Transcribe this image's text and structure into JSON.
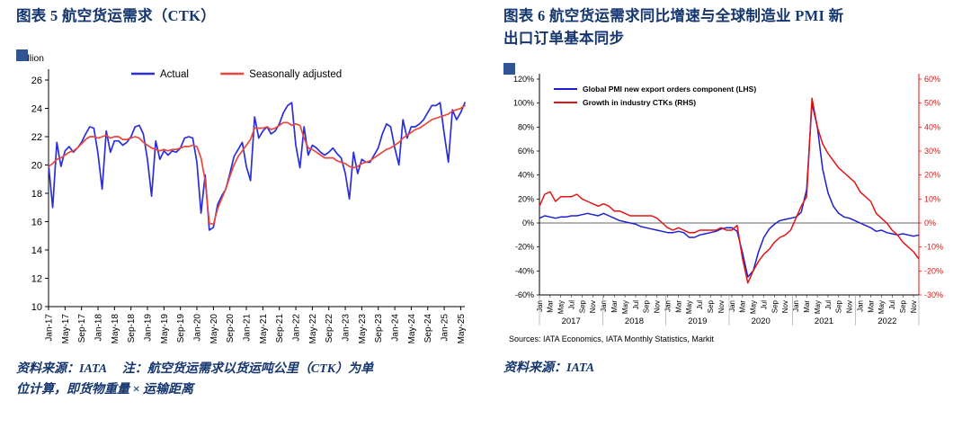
{
  "accent_color": "#15366e",
  "corner_marker_color": "#2f5597",
  "figure5": {
    "title": "图表 5   航空货运需求（CTK）",
    "note_line1": "资料来源：IATA　 注：航空货运需求以货运吨公里（CTK）为单",
    "note_line2": "位计算，即货物重量 × 运输距离"
  },
  "figure6": {
    "title_line1": "图表 6   航空货运需求同比增速与全球制造业 PMI 新",
    "title_line2": "出口订单基本同步",
    "source_note": "资料来源：IATA"
  },
  "chart_data": [
    {
      "type": "line",
      "title": "航空货运需求（CTK）",
      "ylabel": "Billion",
      "ylim": [
        10,
        26
      ],
      "y_ticks": [
        10,
        12,
        14,
        16,
        18,
        20,
        22,
        24,
        26
      ],
      "n": 102,
      "tick_every": 4,
      "tick_labels": [
        "Jan-17",
        "May-17",
        "Sep-17",
        "Jan-18",
        "May-18",
        "Sep-18",
        "Jan-19",
        "May-19",
        "Sep-19",
        "Jan-20",
        "May-20",
        "Sep-20",
        "Jan-21",
        "May-21",
        "Sep-21",
        "Jan-22",
        "May-22",
        "Sep-22",
        "Jan-23",
        "May-23",
        "Sep-23",
        "Jan-24",
        "May-24",
        "Sep-24",
        "Jan-25",
        "May-25"
      ],
      "series": [
        {
          "name": "Actual",
          "color": "#2a2fdb",
          "values": [
            20.0,
            17.0,
            21.6,
            19.9,
            21.0,
            21.3,
            20.9,
            21.2,
            21.6,
            22.2,
            22.7,
            22.6,
            20.8,
            18.3,
            22.4,
            20.9,
            21.7,
            21.7,
            21.4,
            21.6,
            22.0,
            22.7,
            22.8,
            22.2,
            20.4,
            17.8,
            21.7,
            20.4,
            21.0,
            20.7,
            21.0,
            20.9,
            21.2,
            21.9,
            22.0,
            21.9,
            20.2,
            16.6,
            19.3,
            15.4,
            15.6,
            17.2,
            17.8,
            18.3,
            19.4,
            20.6,
            21.1,
            21.6,
            19.9,
            18.9,
            23.4,
            21.9,
            22.4,
            22.7,
            22.2,
            22.4,
            22.9,
            23.7,
            24.2,
            24.4,
            21.4,
            19.8,
            22.7,
            20.7,
            21.4,
            21.2,
            20.9,
            20.7,
            20.9,
            21.2,
            20.8,
            20.5,
            19.4,
            17.6,
            20.9,
            19.4,
            20.4,
            20.2,
            20.2,
            20.7,
            21.2,
            22.2,
            22.9,
            22.7,
            21.2,
            20.0,
            23.2,
            21.9,
            22.7,
            22.7,
            22.9,
            23.2,
            23.7,
            24.2,
            24.2,
            24.4,
            22.2,
            20.2,
            23.9,
            23.2,
            23.7,
            24.4
          ]
        },
        {
          "name": "Seasonally adjusted",
          "color": "#e8473f",
          "values": [
            19.9,
            20.1,
            20.4,
            20.5,
            20.7,
            20.9,
            21.0,
            21.2,
            21.5,
            21.8,
            22.0,
            22.0,
            21.9,
            22.0,
            22.1,
            21.9,
            22.0,
            22.0,
            21.8,
            21.8,
            21.9,
            22.0,
            21.9,
            21.6,
            21.4,
            21.2,
            21.1,
            21.0,
            21.1,
            21.0,
            21.1,
            21.1,
            21.2,
            21.3,
            21.3,
            21.4,
            21.3,
            20.5,
            18.9,
            15.9,
            15.8,
            16.9,
            17.6,
            18.3,
            19.2,
            20.0,
            20.6,
            21.0,
            21.4,
            21.8,
            22.6,
            22.6,
            22.6,
            22.7,
            22.5,
            22.6,
            22.8,
            23.0,
            23.0,
            22.8,
            22.9,
            22.8,
            21.9,
            21.2,
            21.1,
            20.9,
            20.7,
            20.5,
            20.5,
            20.5,
            20.3,
            20.2,
            20.1,
            19.9,
            19.8,
            19.9,
            20.1,
            20.2,
            20.3,
            20.5,
            20.7,
            20.9,
            21.1,
            21.2,
            21.4,
            21.6,
            21.9,
            22.1,
            22.3,
            22.5,
            22.6,
            22.8,
            23.0,
            23.2,
            23.3,
            23.4,
            23.5,
            23.6,
            23.8,
            23.9,
            24.0,
            24.2
          ]
        }
      ]
    },
    {
      "type": "line",
      "title": "航空货运需求同比增速与全球制造业 PMI 新出口订单基本同步",
      "ylim_left": [
        -60,
        120
      ],
      "ylim_right": [
        -30,
        60
      ],
      "y_left_ticks": [
        120,
        100,
        80,
        60,
        40,
        20,
        0,
        -20,
        -40,
        -60
      ],
      "y_right_ticks": [
        60,
        50,
        40,
        30,
        20,
        10,
        0,
        -10,
        -20,
        -30
      ],
      "right_axis_color": "#e01414",
      "n": 72,
      "month_tick_labels": [
        "Jan",
        "Mar",
        "May",
        "Jul",
        "Sep",
        "Nov"
      ],
      "years": [
        2017,
        2018,
        2019,
        2020,
        2021,
        2022
      ],
      "sources": "Sources: IATA Economics, IATA Monthly Statistics, Markit",
      "series": [
        {
          "name": "Global PMI new export orders component (LHS)",
          "axis": "left",
          "color": "#1b1fd1",
          "values": [
            4,
            6,
            5,
            4,
            5,
            5,
            6,
            6,
            7,
            8,
            7,
            6,
            8,
            6,
            4,
            2,
            1,
            0,
            -1,
            -3,
            -4,
            -5,
            -6,
            -7,
            -8,
            -8,
            -7,
            -8,
            -12,
            -12,
            -10,
            -9,
            -8,
            -7,
            -5,
            -4,
            -4,
            -7,
            -25,
            -45,
            -40,
            -24,
            -12,
            -5,
            -1,
            2,
            3,
            4,
            5,
            9,
            28,
            100,
            80,
            45,
            25,
            14,
            8,
            5,
            4,
            2,
            0,
            -2,
            -4,
            -7,
            -6,
            -8,
            -9,
            -10,
            -9,
            -10,
            -11,
            -10
          ]
        },
        {
          "name": "Growth in industry CTKs (RHS)",
          "axis": "right",
          "color": "#e01414",
          "values": [
            7,
            12,
            13,
            9,
            11,
            11,
            11,
            12,
            10,
            9,
            8,
            7,
            8,
            7,
            5,
            5,
            4,
            3,
            3,
            3,
            3,
            3,
            2,
            0,
            -2,
            -3,
            -2,
            -3,
            -4,
            -4,
            -3,
            -3,
            -3,
            -3,
            -2,
            -3,
            -3,
            -1,
            -15,
            -25,
            -20,
            -16,
            -13,
            -11,
            -8,
            -6,
            -5,
            -3,
            2,
            7,
            11,
            52,
            40,
            33,
            29,
            26,
            23,
            21,
            19,
            17,
            13,
            11,
            9,
            4,
            2,
            0,
            -3,
            -5,
            -8,
            -10,
            -12,
            -15
          ]
        }
      ]
    }
  ]
}
